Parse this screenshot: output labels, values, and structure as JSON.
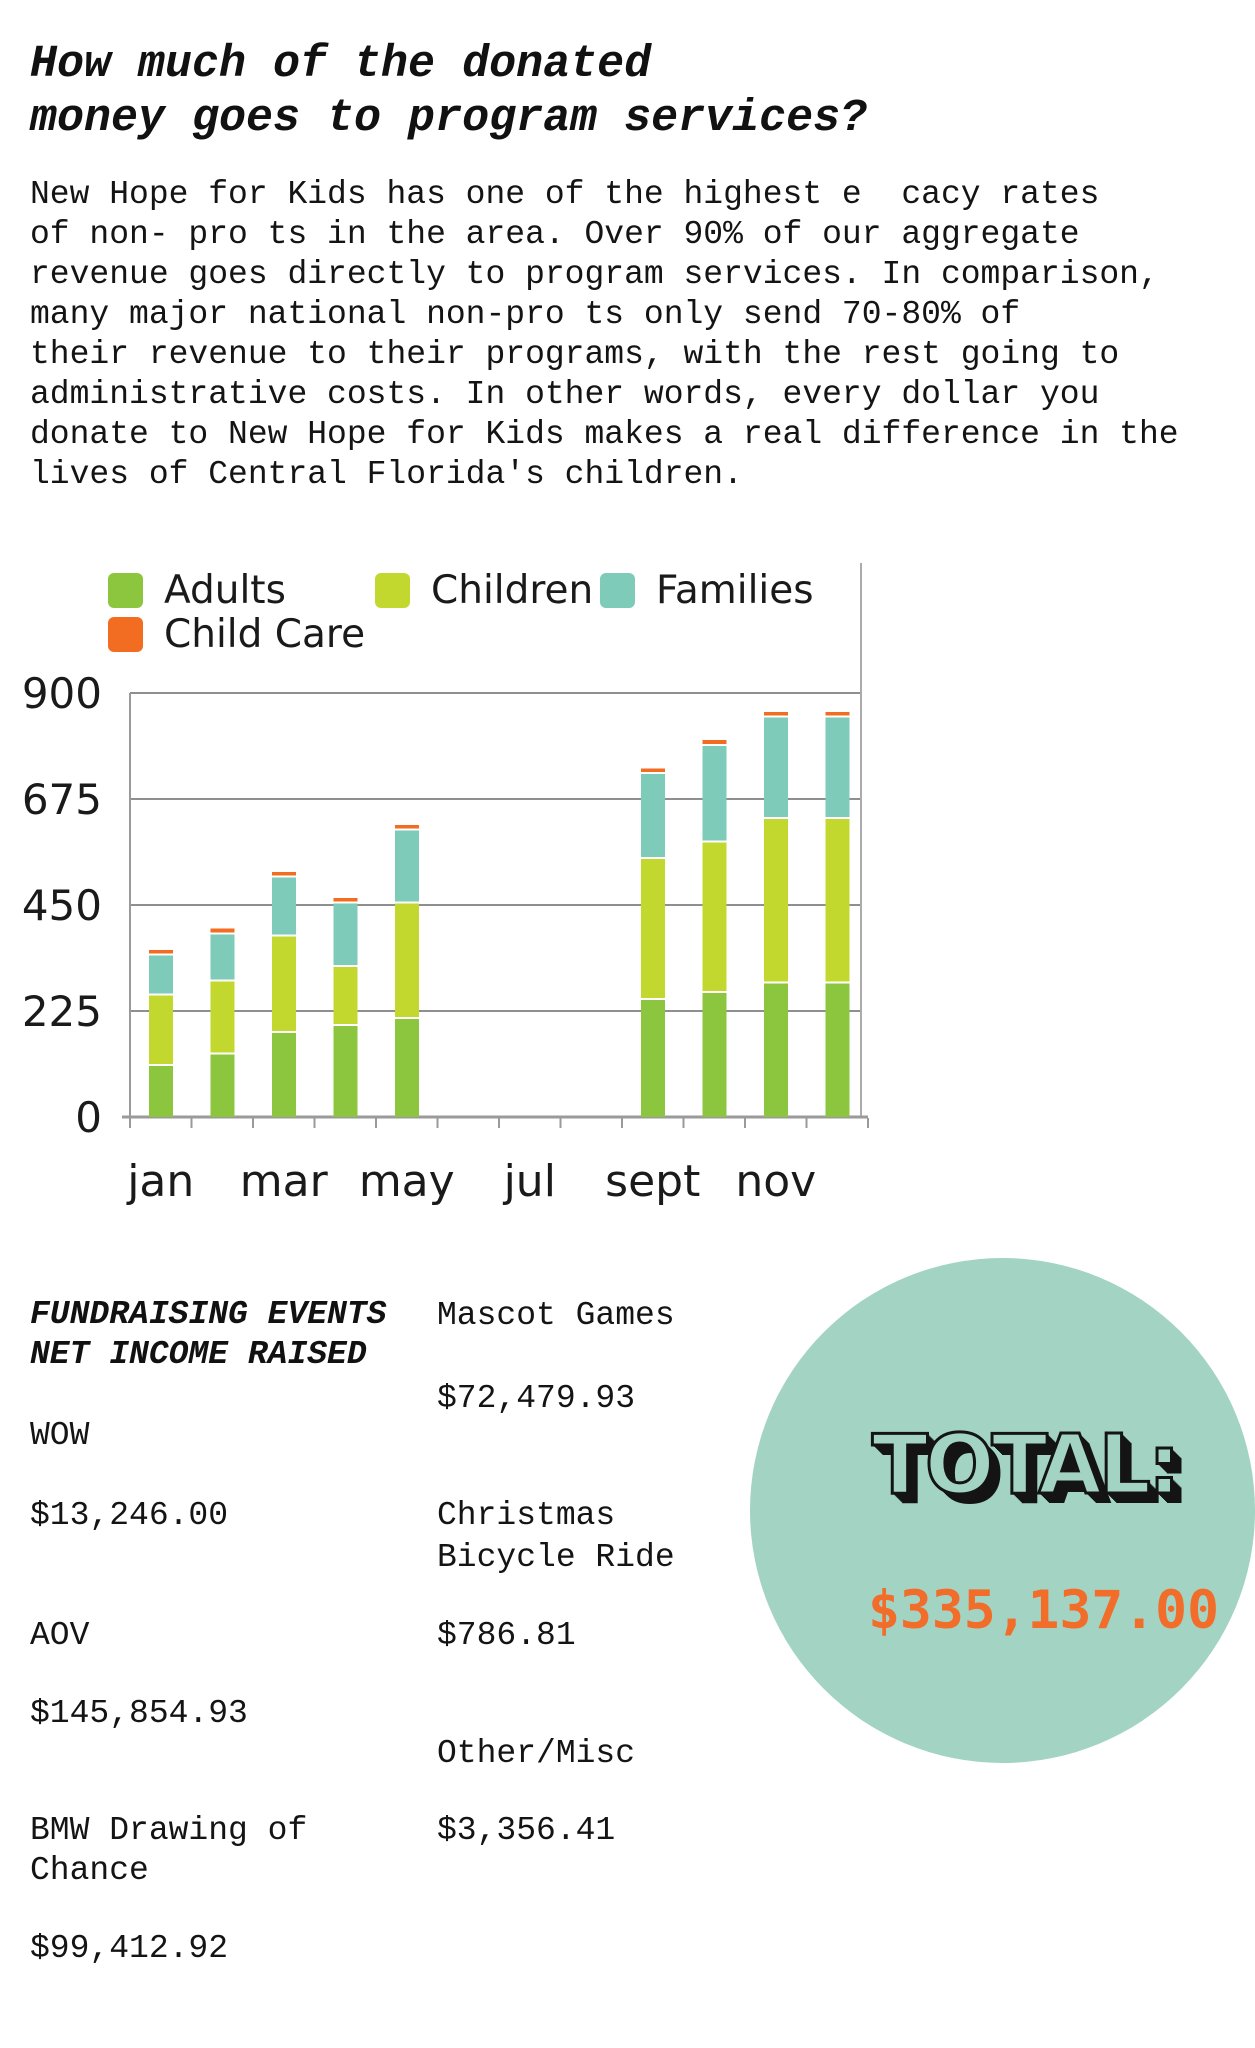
{
  "page": {
    "title_lines": [
      "How much of the donated",
      "money goes to program services?"
    ],
    "paragraph_lines": [
      "New Hope for Kids has one of the highest e  cacy rates",
      "of non- pro ts in the area. Over 90% of our aggregate",
      "revenue goes directly to program services. In comparison,",
      "many major national non-pro ts only send 70-80% of",
      "their revenue to their programs, with the rest going to",
      "administrative costs. In other words, every dollar you",
      "donate to New Hope for Kids makes a real difference in the",
      "lives of Central Florida's children."
    ]
  },
  "chart_data": {
    "type": "bar",
    "stacked": true,
    "title": "",
    "xlabel": "",
    "ylabel": "",
    "categories": [
      "jan",
      "feb",
      "mar",
      "apr",
      "may",
      "jun",
      "jul",
      "aug",
      "sept",
      "oct",
      "nov",
      "dec"
    ],
    "x_tick_labels": [
      "jan",
      "mar",
      "may",
      "jul",
      "sept",
      "nov"
    ],
    "y_ticks": [
      0,
      225,
      450,
      675,
      900
    ],
    "ylim": [
      0,
      900
    ],
    "grid": true,
    "legend_position": "top-left",
    "series": [
      {
        "name": "Adults",
        "color": "#8CC63F",
        "values": [
          110,
          135,
          180,
          195,
          210,
          0,
          0,
          0,
          250,
          265,
          285,
          285
        ]
      },
      {
        "name": "Children",
        "color": "#C3D82F",
        "values": [
          150,
          155,
          205,
          125,
          245,
          0,
          0,
          0,
          300,
          320,
          350,
          350
        ]
      },
      {
        "name": "Families",
        "color": "#7DCBB8",
        "values": [
          85,
          100,
          125,
          135,
          155,
          0,
          0,
          0,
          180,
          205,
          215,
          215
        ]
      },
      {
        "name": "Child Care",
        "color": "#F26D21",
        "values": [
          10,
          10,
          10,
          10,
          10,
          0,
          0,
          0,
          10,
          10,
          10,
          10
        ]
      }
    ]
  },
  "fundraising": {
    "heading_lines": [
      "FUNDRAISING EVENTS",
      "NET INCOME RAISED"
    ],
    "left_column": [
      {
        "name_lines": [
          "WOW"
        ],
        "amount": "$13,246.00"
      },
      {
        "name_lines": [
          "AOV"
        ],
        "amount": "$145,854.93"
      },
      {
        "name_lines": [
          "BMW Drawing of",
          "Chance"
        ],
        "amount": "$99,412.92"
      }
    ],
    "right_column": [
      {
        "name_lines": [
          "Mascot Games"
        ],
        "amount": "$72,479.93"
      },
      {
        "name_lines": [
          "Christmas",
          "Bicycle Ride"
        ],
        "amount": "$786.81"
      },
      {
        "name_lines": [
          "Other/Misc"
        ],
        "amount": "$3,356.41"
      }
    ]
  },
  "total": {
    "label": "TOTAL:",
    "amount": "$335,137.00",
    "circle_color": "#A3D4C3",
    "amount_color": "#F26C2A"
  }
}
